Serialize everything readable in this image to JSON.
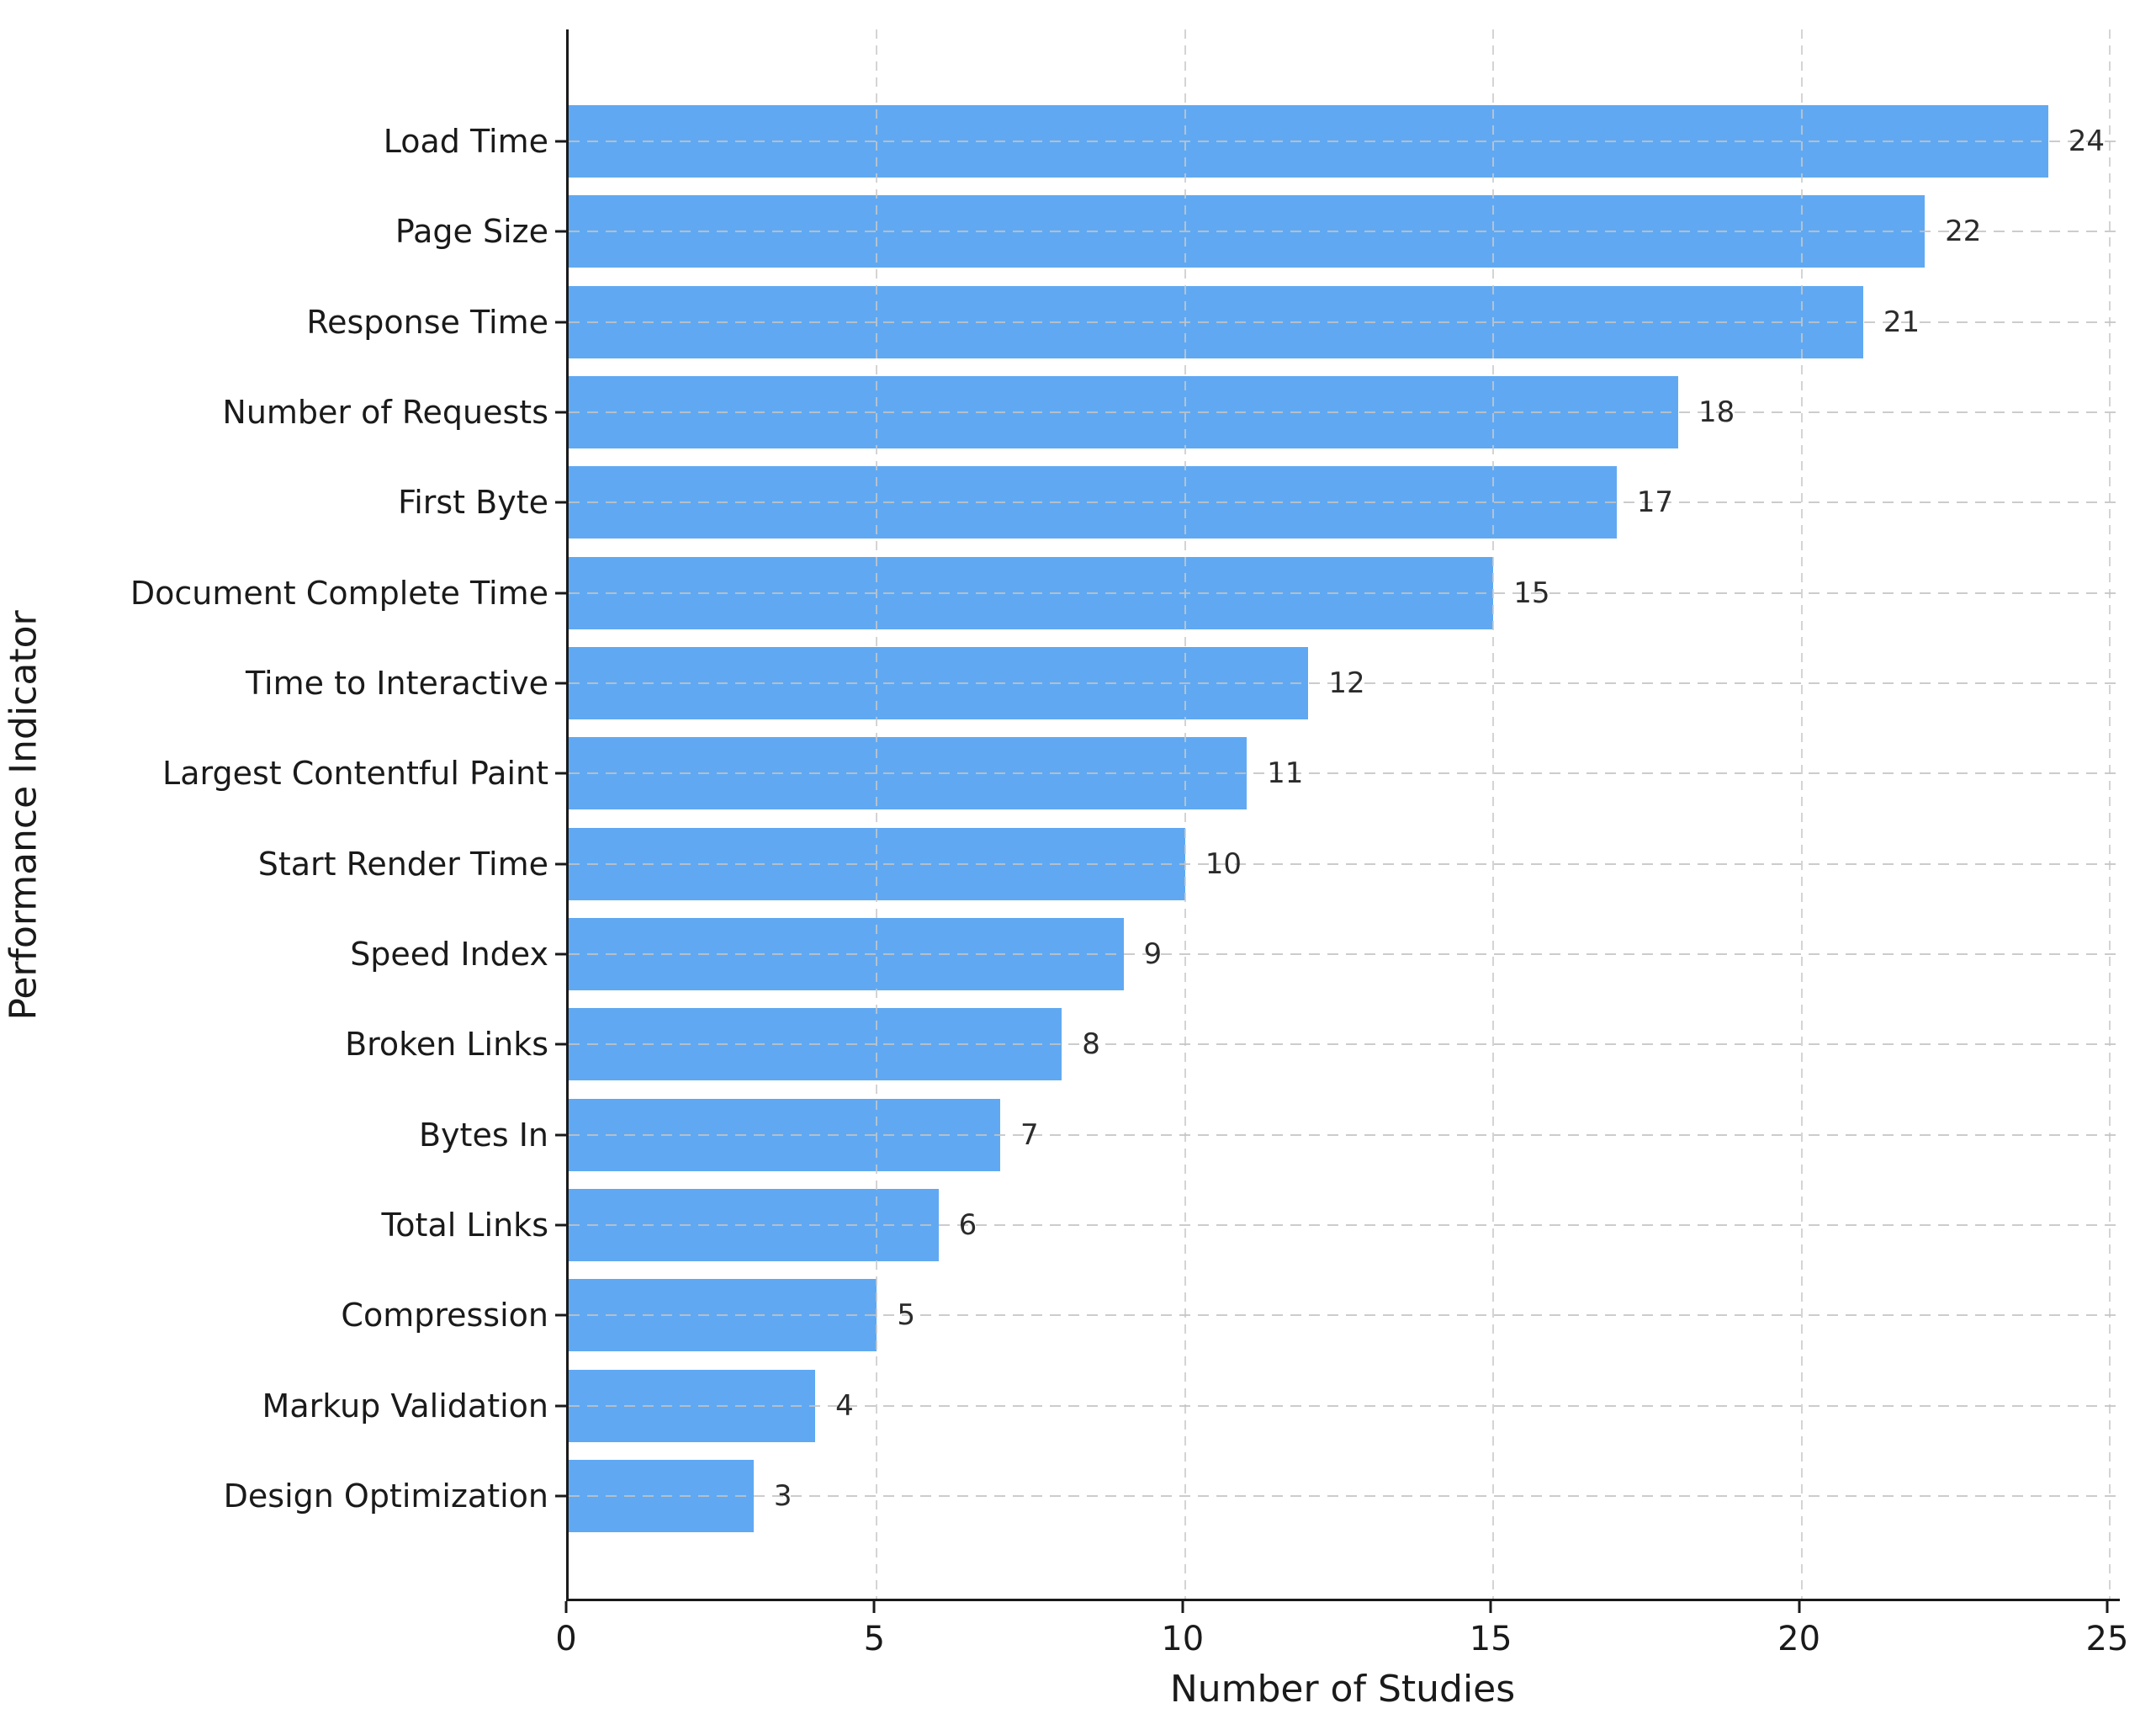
{
  "chart_data": {
    "type": "bar",
    "orientation": "horizontal",
    "title": "",
    "xlabel": "Number of Studies",
    "ylabel": "Performance Indicator",
    "categories": [
      "Load Time",
      "Page Size",
      "Response Time",
      "Number of Requests",
      "First Byte",
      "Document Complete Time",
      "Time to Interactive",
      "Largest Contentful Paint",
      "Start Render Time",
      "Speed Index",
      "Broken Links",
      "Bytes In",
      "Total Links",
      "Compression",
      "Markup Validation",
      "Design Optimization"
    ],
    "values": [
      24,
      22,
      21,
      18,
      17,
      15,
      12,
      11,
      10,
      9,
      8,
      7,
      6,
      5,
      4,
      3
    ],
    "value_labels": [
      "24",
      "22",
      "21",
      "18",
      "17",
      "15",
      "12",
      "11",
      "10",
      "9",
      "8",
      "7",
      "6",
      "5",
      "4",
      "3"
    ],
    "xlim": [
      0,
      25
    ],
    "xticks": [
      0,
      5,
      10,
      15,
      20,
      25
    ],
    "xtick_labels": [
      "0",
      "5",
      "10",
      "15",
      "20",
      "25"
    ],
    "grid": "dashed",
    "grid_vertical_ticks": [
      5,
      10,
      15,
      20,
      25
    ],
    "legend": "none",
    "bar_color": "#60a9f2",
    "grid_color": "#c6c6c6",
    "text_color": "#1a1a1a"
  }
}
